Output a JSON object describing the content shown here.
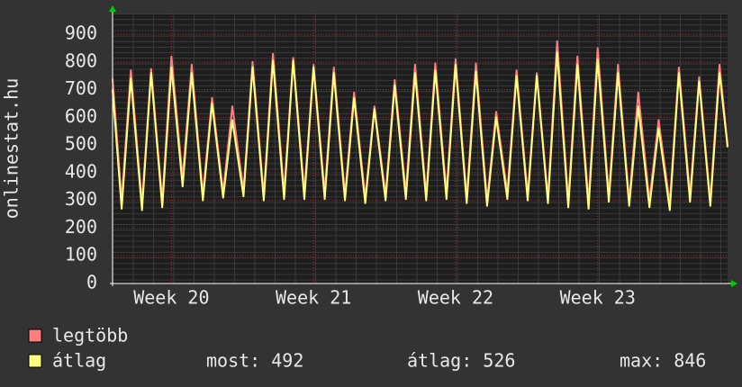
{
  "chart_data": {
    "type": "line",
    "y_label": "onlinestat.hu",
    "x": [
      0,
      0.45,
      0.9,
      1.45,
      1.9,
      2.45,
      2.9,
      3.45,
      3.9,
      4.45,
      4.9,
      5.45,
      5.9,
      6.45,
      6.9,
      7.45,
      7.9,
      8.45,
      8.9,
      9.45,
      9.9,
      10.45,
      10.9,
      11.45,
      11.9,
      12.45,
      12.9,
      13.45,
      13.9,
      14.45,
      14.9,
      15.45,
      15.9,
      16.45,
      16.9,
      17.45,
      17.9,
      18.45,
      18.9,
      19.45,
      19.9,
      20.45,
      20.9,
      21.45,
      21.9,
      22.45,
      22.9,
      23.45,
      23.9,
      24.45,
      24.9,
      25.45,
      25.9,
      26.45,
      26.9,
      27.45,
      27.9,
      28.45,
      28.9,
      29.45,
      29.9,
      30.3
    ],
    "xlim": [
      0,
      30.3
    ],
    "xticks": [
      {
        "value": 2.9,
        "label": "Week 20"
      },
      {
        "value": 9.9,
        "label": "Week 21"
      },
      {
        "value": 16.9,
        "label": "Week 22"
      },
      {
        "value": 23.9,
        "label": "Week 23"
      }
    ],
    "ylim": [
      0,
      975
    ],
    "yticks": [
      0,
      100,
      200,
      300,
      400,
      500,
      600,
      700,
      800,
      900
    ],
    "grid": true,
    "series": [
      {
        "name": "legtöbb",
        "color": "#ff7f7f",
        "values": [
          740,
          300,
          770,
          290,
          775,
          300,
          820,
          380,
          790,
          320,
          670,
          330,
          640,
          335,
          800,
          320,
          830,
          330,
          815,
          330,
          790,
          330,
          780,
          320,
          690,
          310,
          640,
          320,
          735,
          330,
          790,
          320,
          795,
          330,
          810,
          310,
          795,
          300,
          620,
          330,
          770,
          320,
          760,
          310,
          875,
          300,
          820,
          295,
          850,
          320,
          790,
          300,
          690,
          300,
          590,
          290,
          780,
          320,
          745,
          300,
          790,
          500
        ]
      },
      {
        "name": "átlag",
        "color": "#ffff80",
        "values": [
          700,
          270,
          740,
          265,
          760,
          275,
          780,
          350,
          760,
          300,
          650,
          310,
          590,
          315,
          780,
          300,
          805,
          305,
          805,
          305,
          780,
          305,
          760,
          300,
          670,
          290,
          630,
          300,
          715,
          305,
          760,
          300,
          770,
          305,
          790,
          290,
          765,
          280,
          600,
          305,
          750,
          300,
          750,
          290,
          835,
          275,
          790,
          270,
          810,
          295,
          760,
          280,
          640,
          275,
          560,
          265,
          760,
          295,
          730,
          280,
          760,
          492
        ]
      }
    ],
    "stats": [
      "most: 492",
      "átlag: 526",
      "max: 846"
    ]
  }
}
